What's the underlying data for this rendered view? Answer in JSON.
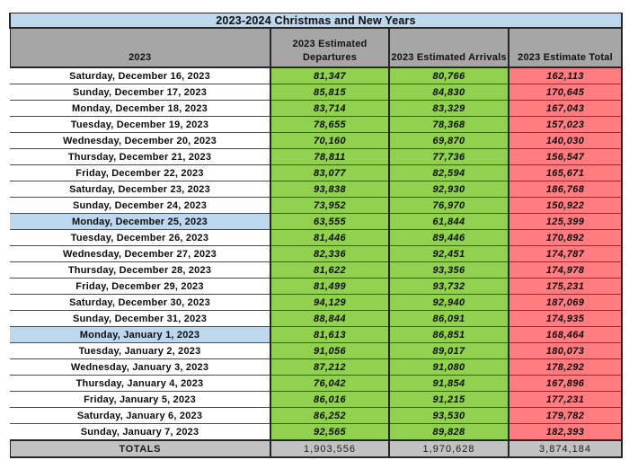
{
  "title": "2023-2024 Christmas and New Years",
  "colors": {
    "title_bg": "#bdd7ee",
    "header_bg": "#a6a6a6",
    "departures_bg": "#92d050",
    "arrivals_bg": "#92d050",
    "total_bg": "#ff7c80",
    "holiday_highlight_bg": "#bdd7ee",
    "totals_row_bg": "#c2c2c2",
    "border": "#262626"
  },
  "table": {
    "columns": {
      "date": "2023",
      "departures": "2023 Estimated Departures",
      "arrivals": "2023 Estimated Arrivals",
      "total": "2023 Estimate Total"
    },
    "rows": [
      {
        "date": "Saturday, December 16, 2023",
        "departures": "81,347",
        "arrivals": "80,766",
        "total": "162,113",
        "highlight": false
      },
      {
        "date": "Sunday, December 17, 2023",
        "departures": "85,815",
        "arrivals": "84,830",
        "total": "170,645",
        "highlight": false
      },
      {
        "date": "Monday, December 18, 2023",
        "departures": "83,714",
        "arrivals": "83,329",
        "total": "167,043",
        "highlight": false
      },
      {
        "date": "Tuesday, December 19, 2023",
        "departures": "78,655",
        "arrivals": "78,368",
        "total": "157,023",
        "highlight": false
      },
      {
        "date": "Wednesday, December 20, 2023",
        "departures": "70,160",
        "arrivals": "69,870",
        "total": "140,030",
        "highlight": false
      },
      {
        "date": "Thursday, December 21, 2023",
        "departures": "78,811",
        "arrivals": "77,736",
        "total": "156,547",
        "highlight": false
      },
      {
        "date": "Friday, December 22, 2023",
        "departures": "83,077",
        "arrivals": "82,594",
        "total": "165,671",
        "highlight": false
      },
      {
        "date": "Saturday, December 23, 2023",
        "departures": "93,838",
        "arrivals": "92,930",
        "total": "186,768",
        "highlight": false
      },
      {
        "date": "Sunday, December 24, 2023",
        "departures": "73,952",
        "arrivals": "76,970",
        "total": "150,922",
        "highlight": false
      },
      {
        "date": "Monday, December 25, 2023",
        "departures": "63,555",
        "arrivals": "61,844",
        "total": "125,399",
        "highlight": true
      },
      {
        "date": "Tuesday, December 26, 2023",
        "departures": "81,446",
        "arrivals": "89,446",
        "total": "170,892",
        "highlight": false
      },
      {
        "date": "Wednesday, December 27, 2023",
        "departures": "82,336",
        "arrivals": "92,451",
        "total": "174,787",
        "highlight": false
      },
      {
        "date": "Thursday, December 28, 2023",
        "departures": "81,622",
        "arrivals": "93,356",
        "total": "174,978",
        "highlight": false
      },
      {
        "date": "Friday, December 29, 2023",
        "departures": "81,499",
        "arrivals": "93,732",
        "total": "175,231",
        "highlight": false
      },
      {
        "date": "Saturday, December 30, 2023",
        "departures": "94,129",
        "arrivals": "92,940",
        "total": "187,069",
        "highlight": false
      },
      {
        "date": "Sunday, December 31, 2023",
        "departures": "88,844",
        "arrivals": "86,091",
        "total": "174,935",
        "highlight": false
      },
      {
        "date": "Monday, January 1, 2023",
        "departures": "81,613",
        "arrivals": "86,851",
        "total": "168,464",
        "highlight": true
      },
      {
        "date": "Tuesday, January 2, 2023",
        "departures": "91,056",
        "arrivals": "89,017",
        "total": "180,073",
        "highlight": false
      },
      {
        "date": "Wednesday, January 3, 2023",
        "departures": "87,212",
        "arrivals": "91,080",
        "total": "178,292",
        "highlight": false
      },
      {
        "date": "Thursday, January 4, 2023",
        "departures": "76,042",
        "arrivals": "91,854",
        "total": "167,896",
        "highlight": false
      },
      {
        "date": "Friday, January 5, 2023",
        "departures": "86,016",
        "arrivals": "91,215",
        "total": "177,231",
        "highlight": false
      },
      {
        "date": "Saturday, January 6, 2023",
        "departures": "86,252",
        "arrivals": "93,530",
        "total": "179,782",
        "highlight": false
      },
      {
        "date": "Sunday, January 7, 2023",
        "departures": "92,565",
        "arrivals": "89,828",
        "total": "182,393",
        "highlight": false
      }
    ],
    "totals": {
      "label": "TOTALS",
      "departures": "1,903,556",
      "arrivals": "1,970,628",
      "total": "3,874,184"
    }
  }
}
